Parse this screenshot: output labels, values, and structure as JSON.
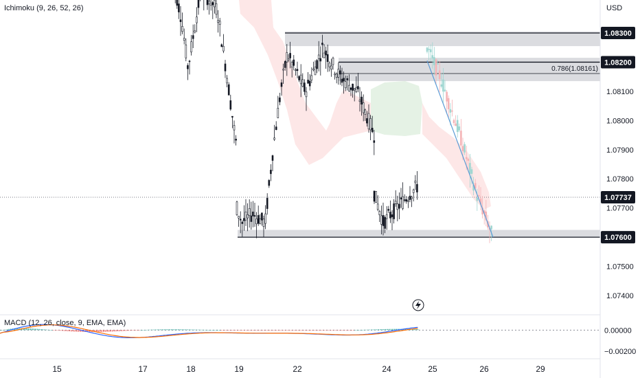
{
  "chart_data": {
    "type": "candlestick",
    "currency_label": "USD",
    "indicator_label": "Ichimoku (9, 26, 52, 26)",
    "macd_label": "MACD (12, 26, close, 9, EMA, EMA)",
    "ylim": [
      1.0736,
      1.0838
    ],
    "y_ticks": [
      "1.07400",
      "1.07500",
      "1.07600",
      "1.07700",
      "1.07800",
      "1.07900",
      "1.08000",
      "1.08100",
      "1.08200",
      "1.08300"
    ],
    "y_tick_values": [
      1.074,
      1.075,
      1.076,
      1.077,
      1.078,
      1.079,
      1.08,
      1.081,
      1.082,
      1.083
    ],
    "x_ticks": [
      "15",
      "17",
      "18",
      "19",
      "22",
      "24",
      "25",
      "26",
      "29"
    ],
    "highlighted_levels": [
      {
        "value": 1.083,
        "label": "1.08300"
      },
      {
        "value": 1.082,
        "label": "1.08200"
      },
      {
        "value": 1.076,
        "label": "1.07600"
      }
    ],
    "current_price": {
      "value": 1.07737,
      "label": "1.07737"
    },
    "fib_label": "0.786(1.08161)",
    "fib_value": 1.08161,
    "zones": [
      {
        "y_top": 1.08305,
        "y_bottom": 1.08255,
        "from": "22",
        "to": "end"
      },
      {
        "y_top": 1.08215,
        "y_bottom": 1.08135,
        "from": "22b",
        "to": "end"
      },
      {
        "y_top": 1.07625,
        "y_bottom": 1.076,
        "from": "19",
        "to": "end"
      }
    ],
    "macd_ylim": [
      -0.0026,
      0.0012
    ],
    "macd_ticks": [
      "0.00000",
      "−0.00200"
    ],
    "macd_tick_values": [
      0,
      -0.002
    ]
  }
}
